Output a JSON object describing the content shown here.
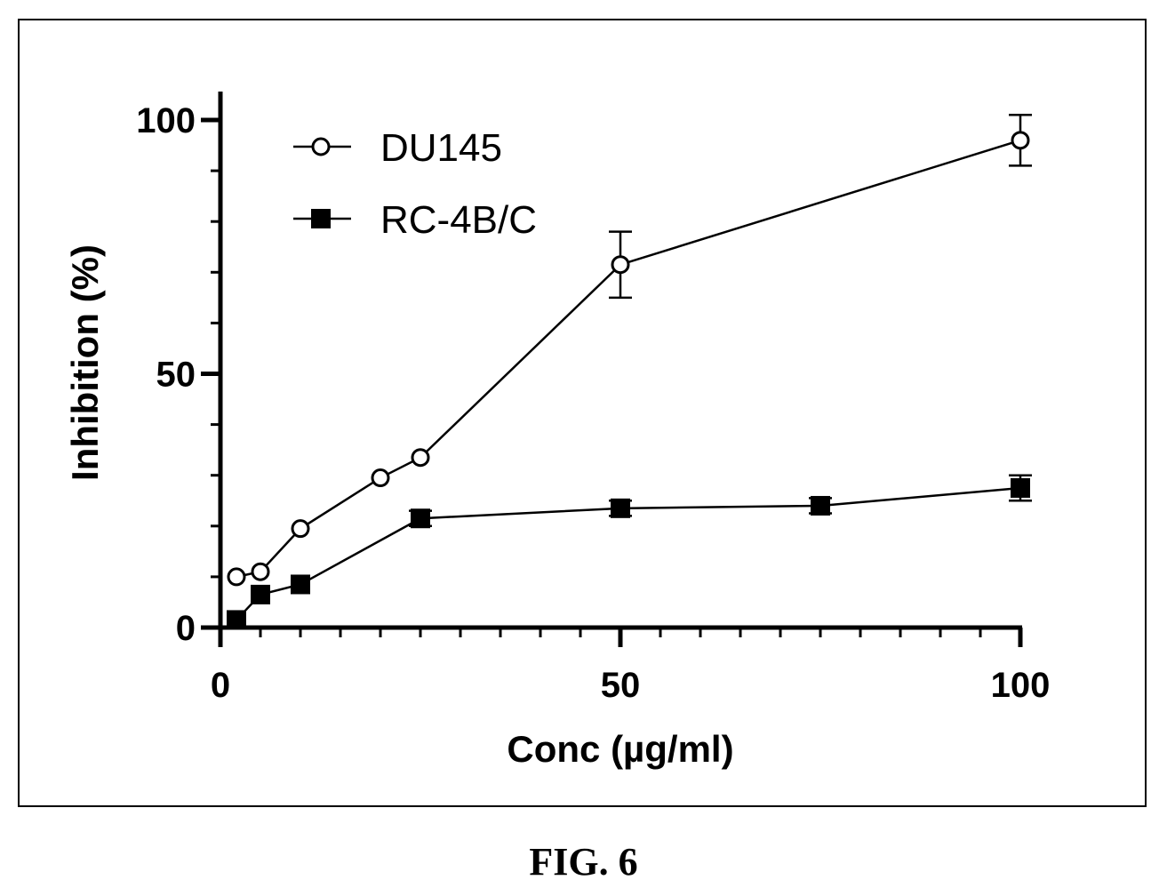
{
  "figure": {
    "caption": "FIG. 6"
  },
  "chart_data": {
    "type": "line",
    "title": "",
    "xlabel": "Conc (µg/ml)",
    "ylabel": "Inhibition (%)",
    "xlim": [
      0,
      100
    ],
    "ylim": [
      0,
      100
    ],
    "x_ticks": [
      0,
      50,
      100
    ],
    "y_ticks": [
      0,
      50,
      100
    ],
    "x_minor_step": 5,
    "y_minor_step": 10,
    "grid": false,
    "legend_position": "top-left",
    "series": [
      {
        "name": "DU145",
        "marker": "open-circle",
        "color": "#000000",
        "x": [
          2,
          5,
          10,
          20,
          25,
          50,
          100
        ],
        "y": [
          10,
          11,
          19.5,
          29.5,
          33.5,
          71.5,
          96
        ],
        "error": [
          0,
          0,
          0,
          0,
          0,
          6.5,
          5
        ]
      },
      {
        "name": "RC-4B/C",
        "marker": "filled-square",
        "color": "#000000",
        "x": [
          2,
          5,
          10,
          25,
          50,
          75,
          100
        ],
        "y": [
          1.5,
          6.5,
          8.5,
          21.5,
          23.5,
          24,
          27.5
        ],
        "error": [
          0,
          0,
          0,
          1.5,
          1.5,
          1.5,
          2.5
        ]
      }
    ]
  }
}
